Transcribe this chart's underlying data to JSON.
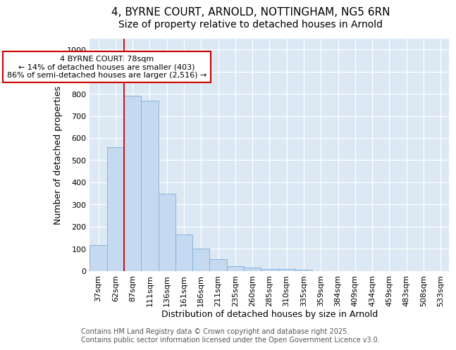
{
  "title": "4, BYRNE COURT, ARNOLD, NOTTINGHAM, NG5 6RN",
  "subtitle": "Size of property relative to detached houses in Arnold",
  "xlabel": "Distribution of detached houses by size in Arnold",
  "ylabel": "Number of detached properties",
  "categories": [
    "37sqm",
    "62sqm",
    "87sqm",
    "111sqm",
    "136sqm",
    "161sqm",
    "186sqm",
    "211sqm",
    "235sqm",
    "260sqm",
    "285sqm",
    "310sqm",
    "335sqm",
    "359sqm",
    "384sqm",
    "409sqm",
    "434sqm",
    "459sqm",
    "483sqm",
    "508sqm",
    "533sqm"
  ],
  "values": [
    115,
    560,
    790,
    770,
    350,
    165,
    100,
    53,
    20,
    14,
    9,
    8,
    6,
    0,
    0,
    0,
    0,
    0,
    0,
    0,
    0
  ],
  "bar_color": "#c5d9f0",
  "bar_edge_color": "#8ab4d9",
  "vline_color": "#cc0000",
  "annotation_text": "4 BYRNE COURT: 78sqm\n← 14% of detached houses are smaller (403)\n86% of semi-detached houses are larger (2,516) →",
  "annotation_box_color": "#ffffff",
  "annotation_box_edge_color": "#cc0000",
  "ylim": [
    0,
    1050
  ],
  "yticks": [
    0,
    100,
    200,
    300,
    400,
    500,
    600,
    700,
    800,
    900,
    1000
  ],
  "bg_color": "#ffffff",
  "plot_bg_color": "#dce9f5",
  "grid_color": "#ffffff",
  "footer_text": "Contains HM Land Registry data © Crown copyright and database right 2025.\nContains public sector information licensed under the Open Government Licence v3.0.",
  "title_fontsize": 11,
  "subtitle_fontsize": 10,
  "xlabel_fontsize": 9,
  "ylabel_fontsize": 9,
  "tick_fontsize": 8,
  "annotation_fontsize": 8,
  "footer_fontsize": 7
}
